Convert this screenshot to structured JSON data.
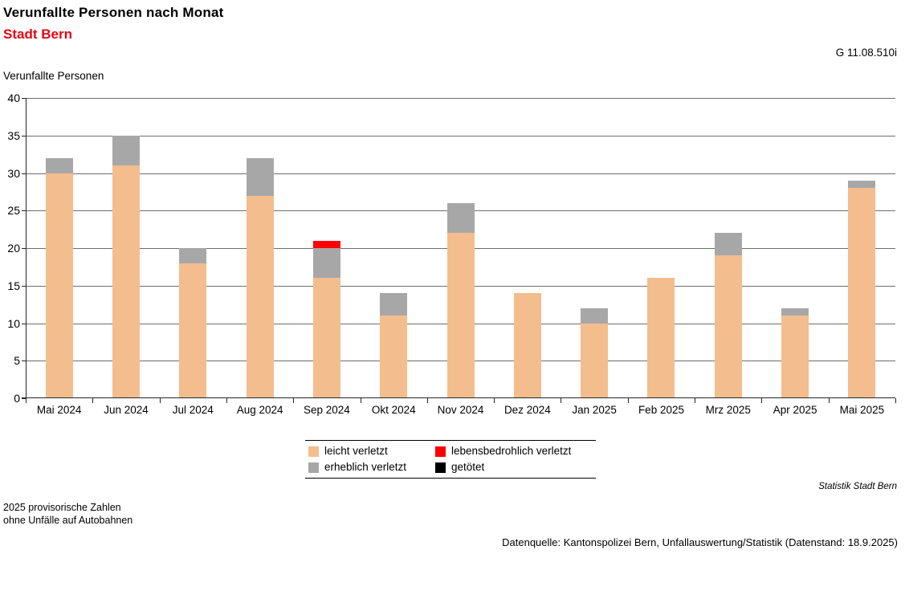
{
  "header": {
    "title": "Verunfallte Personen nach Monat",
    "subtitle": "Stadt Bern",
    "graph_id": "G 11.08.510i",
    "y_axis_title": "Verunfallte Personen"
  },
  "chart_data": {
    "type": "bar",
    "stacked": true,
    "title": "Verunfallte Personen nach Monat",
    "subtitle": "Stadt Bern",
    "ylabel": "Verunfallte Personen",
    "xlabel": "",
    "ylim": [
      0,
      40
    ],
    "ytick_step": 5,
    "grid": true,
    "legend_position": "bottom",
    "categories": [
      "Mai 2024",
      "Jun 2024",
      "Jul 2024",
      "Aug 2024",
      "Sep 2024",
      "Okt 2024",
      "Nov 2024",
      "Dez 2024",
      "Jan 2025",
      "Feb 2025",
      "Mrz 2025",
      "Apr 2025",
      "Mai 2025"
    ],
    "series": [
      {
        "name": "leicht verletzt",
        "color": "#f4bd8d",
        "values": [
          30,
          31,
          18,
          27,
          16,
          11,
          22,
          14,
          10,
          16,
          19,
          11,
          28
        ]
      },
      {
        "name": "erheblich verletzt",
        "color": "#a7a7a7",
        "values": [
          2,
          4,
          2,
          5,
          4,
          3,
          4,
          0,
          2,
          0,
          3,
          1,
          1
        ]
      },
      {
        "name": "lebensbedrohlich verletzt",
        "color": "#ff0000",
        "values": [
          0,
          0,
          0,
          0,
          1,
          0,
          0,
          0,
          0,
          0,
          0,
          0,
          0
        ]
      },
      {
        "name": "getötet",
        "color": "#000000",
        "values": [
          0,
          0,
          0,
          0,
          0,
          0,
          0,
          0,
          0,
          0,
          0,
          0,
          0
        ]
      }
    ],
    "totals": [
      32,
      35,
      20,
      32,
      21,
      14,
      26,
      14,
      12,
      16,
      22,
      12,
      29
    ]
  },
  "footer": {
    "source_note": "Statistik Stadt Bern",
    "footnote_line1": "2025 provisorische Zahlen",
    "footnote_line2": "ohne Unfälle auf Autobahnen",
    "datasource": "Datenquelle: Kantonspolizei Bern, Unfallauswertung/Statistik (Datenstand: 18.9.2025)"
  }
}
